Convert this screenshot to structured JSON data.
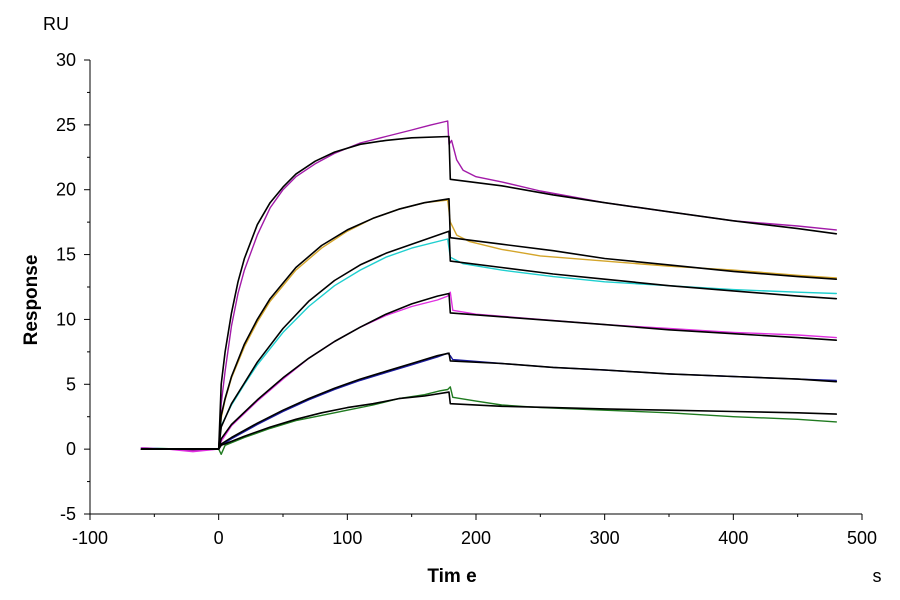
{
  "chart_data": {
    "type": "line",
    "title": "",
    "xlabel": "Tim e",
    "ylabel": "Response",
    "x_unit": "s",
    "y_unit": "RU",
    "xlim": [
      -100,
      500
    ],
    "ylim": [
      -5,
      30
    ],
    "x_ticks": [
      -100,
      0,
      100,
      200,
      300,
      400,
      500
    ],
    "y_ticks": [
      -5,
      0,
      5,
      10,
      15,
      20,
      25,
      30
    ],
    "grid": false,
    "legend": "none",
    "series": [
      {
        "color": "#a21aa8",
        "points": [
          [
            -60,
            0.1
          ],
          [
            -40,
            0.0
          ],
          [
            -20,
            -0.1
          ],
          [
            0,
            0.0
          ],
          [
            2,
            3.5
          ],
          [
            5,
            6.0
          ],
          [
            10,
            9.5
          ],
          [
            15,
            12.0
          ],
          [
            20,
            13.8
          ],
          [
            30,
            16.5
          ],
          [
            40,
            18.6
          ],
          [
            50,
            20.0
          ],
          [
            60,
            21.0
          ],
          [
            75,
            22.0
          ],
          [
            90,
            22.8
          ],
          [
            110,
            23.6
          ],
          [
            130,
            24.1
          ],
          [
            150,
            24.6
          ],
          [
            165,
            25.0
          ],
          [
            178,
            25.3
          ],
          [
            179,
            23.5
          ],
          [
            181,
            23.8
          ],
          [
            185,
            22.3
          ],
          [
            190,
            21.5
          ],
          [
            200,
            21.0
          ],
          [
            220,
            20.6
          ],
          [
            250,
            19.9
          ],
          [
            300,
            19.0
          ],
          [
            350,
            18.3
          ],
          [
            400,
            17.6
          ],
          [
            450,
            17.2
          ],
          [
            480,
            16.9
          ]
        ]
      },
      {
        "color": "#d4a52a",
        "points": [
          [
            -60,
            0.1
          ],
          [
            -30,
            0.0
          ],
          [
            0,
            0.0
          ],
          [
            2,
            2.4
          ],
          [
            5,
            3.8
          ],
          [
            10,
            5.5
          ],
          [
            20,
            7.9
          ],
          [
            30,
            9.8
          ],
          [
            40,
            11.4
          ],
          [
            60,
            13.8
          ],
          [
            80,
            15.5
          ],
          [
            100,
            16.8
          ],
          [
            120,
            17.8
          ],
          [
            140,
            18.5
          ],
          [
            160,
            19.0
          ],
          [
            178,
            19.2
          ],
          [
            180,
            17.5
          ],
          [
            185,
            16.5
          ],
          [
            195,
            16.0
          ],
          [
            220,
            15.4
          ],
          [
            250,
            14.9
          ],
          [
            300,
            14.5
          ],
          [
            350,
            14.1
          ],
          [
            400,
            13.8
          ],
          [
            450,
            13.4
          ],
          [
            480,
            13.2
          ]
        ]
      },
      {
        "color": "#1fcfcf",
        "points": [
          [
            -60,
            0.1
          ],
          [
            -30,
            0.0
          ],
          [
            0,
            0.0
          ],
          [
            2,
            1.8
          ],
          [
            10,
            3.4
          ],
          [
            20,
            5.0
          ],
          [
            30,
            6.5
          ],
          [
            50,
            9.0
          ],
          [
            70,
            11.0
          ],
          [
            90,
            12.6
          ],
          [
            110,
            13.8
          ],
          [
            130,
            14.8
          ],
          [
            150,
            15.5
          ],
          [
            178,
            16.2
          ],
          [
            180,
            14.8
          ],
          [
            190,
            14.3
          ],
          [
            220,
            13.8
          ],
          [
            260,
            13.3
          ],
          [
            300,
            12.9
          ],
          [
            350,
            12.6
          ],
          [
            400,
            12.3
          ],
          [
            450,
            12.1
          ],
          [
            480,
            12.0
          ]
        ]
      },
      {
        "color": "#e030e0",
        "points": [
          [
            -60,
            0.1
          ],
          [
            -40,
            0.0
          ],
          [
            -20,
            -0.2
          ],
          [
            0,
            0.0
          ],
          [
            2,
            0.6
          ],
          [
            10,
            1.8
          ],
          [
            30,
            3.7
          ],
          [
            50,
            5.4
          ],
          [
            70,
            7.0
          ],
          [
            90,
            8.3
          ],
          [
            110,
            9.4
          ],
          [
            130,
            10.3
          ],
          [
            150,
            11.0
          ],
          [
            170,
            11.5
          ],
          [
            178,
            11.8
          ],
          [
            180,
            12.1
          ],
          [
            182,
            10.7
          ],
          [
            200,
            10.4
          ],
          [
            250,
            10.0
          ],
          [
            300,
            9.6
          ],
          [
            350,
            9.3
          ],
          [
            400,
            9.0
          ],
          [
            450,
            8.8
          ],
          [
            480,
            8.6
          ]
        ]
      },
      {
        "color": "#1a1aa0",
        "points": [
          [
            -60,
            0.0
          ],
          [
            -30,
            0.0
          ],
          [
            0,
            0.0
          ],
          [
            2,
            0.3
          ],
          [
            10,
            0.8
          ],
          [
            30,
            1.9
          ],
          [
            50,
            2.9
          ],
          [
            70,
            3.8
          ],
          [
            90,
            4.6
          ],
          [
            110,
            5.3
          ],
          [
            130,
            5.9
          ],
          [
            150,
            6.5
          ],
          [
            170,
            7.1
          ],
          [
            178,
            7.4
          ],
          [
            180,
            7.2
          ],
          [
            182,
            6.9
          ],
          [
            220,
            6.6
          ],
          [
            260,
            6.3
          ],
          [
            300,
            6.1
          ],
          [
            350,
            5.8
          ],
          [
            400,
            5.6
          ],
          [
            450,
            5.4
          ],
          [
            480,
            5.3
          ]
        ]
      },
      {
        "color": "#1f7a1f",
        "points": [
          [
            -60,
            0.0
          ],
          [
            -30,
            0.0
          ],
          [
            0,
            0.0
          ],
          [
            2,
            -0.4
          ],
          [
            5,
            0.3
          ],
          [
            10,
            0.5
          ],
          [
            20,
            0.9
          ],
          [
            40,
            1.6
          ],
          [
            60,
            2.2
          ],
          [
            80,
            2.6
          ],
          [
            100,
            3.0
          ],
          [
            120,
            3.4
          ],
          [
            140,
            3.9
          ],
          [
            160,
            4.2
          ],
          [
            172,
            4.5
          ],
          [
            178,
            4.6
          ],
          [
            180,
            4.8
          ],
          [
            182,
            4.0
          ],
          [
            200,
            3.7
          ],
          [
            220,
            3.4
          ],
          [
            250,
            3.2
          ],
          [
            300,
            3.0
          ],
          [
            350,
            2.8
          ],
          [
            400,
            2.5
          ],
          [
            450,
            2.3
          ],
          [
            480,
            2.1
          ]
        ]
      },
      {
        "color": "#000000",
        "points": [
          [
            -60,
            0.0
          ],
          [
            0,
            0.0
          ],
          [
            2,
            5.0
          ],
          [
            5,
            7.5
          ],
          [
            10,
            10.5
          ],
          [
            15,
            12.9
          ],
          [
            20,
            14.7
          ],
          [
            30,
            17.3
          ],
          [
            40,
            19.0
          ],
          [
            50,
            20.2
          ],
          [
            60,
            21.2
          ],
          [
            75,
            22.2
          ],
          [
            90,
            22.9
          ],
          [
            110,
            23.5
          ],
          [
            130,
            23.8
          ],
          [
            150,
            24.0
          ],
          [
            179,
            24.1
          ],
          [
            180,
            20.8
          ],
          [
            220,
            20.3
          ],
          [
            260,
            19.6
          ],
          [
            300,
            19.0
          ],
          [
            350,
            18.3
          ],
          [
            400,
            17.6
          ],
          [
            450,
            17.0
          ],
          [
            480,
            16.6
          ]
        ]
      },
      {
        "color": "#000000",
        "points": [
          [
            -60,
            0.0
          ],
          [
            0,
            0.0
          ],
          [
            2,
            2.6
          ],
          [
            5,
            3.9
          ],
          [
            10,
            5.6
          ],
          [
            20,
            8.1
          ],
          [
            30,
            10.0
          ],
          [
            40,
            11.6
          ],
          [
            60,
            14.0
          ],
          [
            80,
            15.7
          ],
          [
            100,
            16.9
          ],
          [
            120,
            17.8
          ],
          [
            140,
            18.5
          ],
          [
            160,
            19.0
          ],
          [
            179,
            19.3
          ],
          [
            180,
            16.3
          ],
          [
            220,
            15.8
          ],
          [
            260,
            15.3
          ],
          [
            300,
            14.7
          ],
          [
            350,
            14.2
          ],
          [
            400,
            13.7
          ],
          [
            450,
            13.3
          ],
          [
            480,
            13.1
          ]
        ]
      },
      {
        "color": "#000000",
        "points": [
          [
            -60,
            0.0
          ],
          [
            0,
            0.0
          ],
          [
            2,
            1.7
          ],
          [
            10,
            3.5
          ],
          [
            20,
            5.1
          ],
          [
            30,
            6.7
          ],
          [
            50,
            9.3
          ],
          [
            70,
            11.4
          ],
          [
            90,
            13.0
          ],
          [
            110,
            14.2
          ],
          [
            130,
            15.1
          ],
          [
            150,
            15.8
          ],
          [
            179,
            16.8
          ],
          [
            180,
            14.5
          ],
          [
            220,
            14.0
          ],
          [
            260,
            13.5
          ],
          [
            300,
            13.1
          ],
          [
            350,
            12.6
          ],
          [
            400,
            12.2
          ],
          [
            450,
            11.8
          ],
          [
            480,
            11.6
          ]
        ]
      },
      {
        "color": "#000000",
        "points": [
          [
            -60,
            0.0
          ],
          [
            0,
            0.0
          ],
          [
            2,
            0.8
          ],
          [
            10,
            1.9
          ],
          [
            30,
            3.8
          ],
          [
            50,
            5.5
          ],
          [
            70,
            7.0
          ],
          [
            90,
            8.3
          ],
          [
            110,
            9.4
          ],
          [
            130,
            10.4
          ],
          [
            150,
            11.2
          ],
          [
            170,
            11.8
          ],
          [
            179,
            12.0
          ],
          [
            180,
            10.5
          ],
          [
            220,
            10.2
          ],
          [
            260,
            9.9
          ],
          [
            300,
            9.6
          ],
          [
            350,
            9.2
          ],
          [
            400,
            8.9
          ],
          [
            450,
            8.6
          ],
          [
            480,
            8.4
          ]
        ]
      },
      {
        "color": "#000000",
        "points": [
          [
            -60,
            0.0
          ],
          [
            0,
            0.0
          ],
          [
            2,
            0.4
          ],
          [
            10,
            0.9
          ],
          [
            30,
            2.0
          ],
          [
            50,
            3.0
          ],
          [
            70,
            3.9
          ],
          [
            90,
            4.7
          ],
          [
            110,
            5.4
          ],
          [
            130,
            6.0
          ],
          [
            150,
            6.6
          ],
          [
            170,
            7.2
          ],
          [
            179,
            7.4
          ],
          [
            180,
            6.8
          ],
          [
            220,
            6.6
          ],
          [
            260,
            6.3
          ],
          [
            300,
            6.1
          ],
          [
            350,
            5.8
          ],
          [
            400,
            5.6
          ],
          [
            450,
            5.4
          ],
          [
            480,
            5.2
          ]
        ]
      },
      {
        "color": "#000000",
        "points": [
          [
            -60,
            0.0
          ],
          [
            0,
            0.0
          ],
          [
            2,
            0.3
          ],
          [
            10,
            0.6
          ],
          [
            20,
            1.0
          ],
          [
            40,
            1.7
          ],
          [
            60,
            2.3
          ],
          [
            80,
            2.8
          ],
          [
            100,
            3.2
          ],
          [
            120,
            3.5
          ],
          [
            140,
            3.9
          ],
          [
            160,
            4.1
          ],
          [
            179,
            4.4
          ],
          [
            180,
            3.5
          ],
          [
            220,
            3.3
          ],
          [
            260,
            3.2
          ],
          [
            300,
            3.1
          ],
          [
            350,
            3.0
          ],
          [
            400,
            2.9
          ],
          [
            450,
            2.8
          ],
          [
            480,
            2.7
          ]
        ]
      }
    ]
  }
}
